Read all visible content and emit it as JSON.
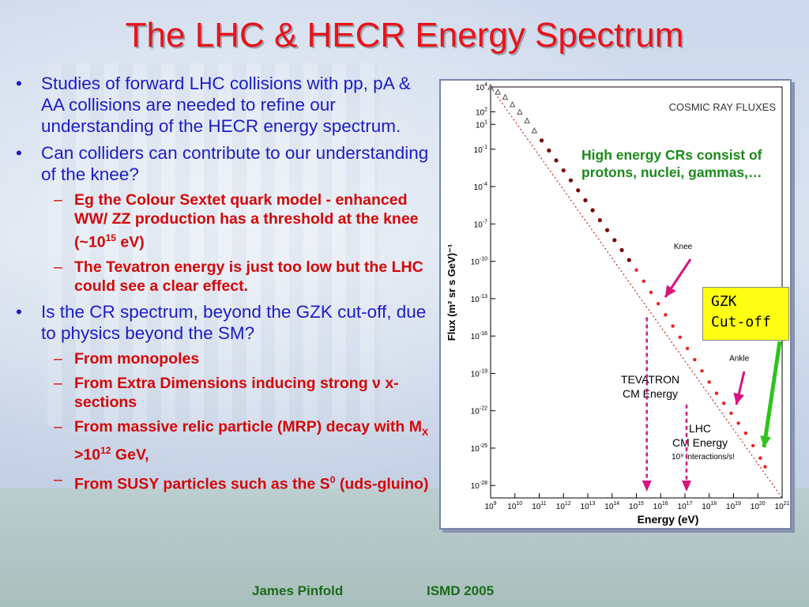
{
  "slide": {
    "title": "The LHC & HECR Energy Spectrum",
    "footer_author": "James Pinfold",
    "footer_conf": "ISMD 2005"
  },
  "bullets": [
    {
      "level": 1,
      "mark": "•",
      "text": "Studies of  forward LHC collisions with pp, pA & AA  collisions are needed  to refine our understanding of the HECR energy spectrum."
    },
    {
      "level": 1,
      "mark": "•",
      "text": "Can colliders can contribute to our understanding of the  knee?"
    },
    {
      "level": 2,
      "mark": "–",
      "text_before": "Eg the Colour Sextet quark model - enhanced WW/ ZZ production has a threshold at the knee (~10",
      "sup": "15",
      "text_after": " eV)"
    },
    {
      "level": 2,
      "mark": "–",
      "text": "The Tevatron energy is just too low but the LHC could see a clear effect."
    },
    {
      "level": 1,
      "mark": "•",
      "text": "Is the CR spectrum,  beyond the GZK cut-off, due to physics beyond the SM?"
    },
    {
      "level": 2,
      "mark": "–",
      "text": "From monopoles"
    },
    {
      "level": 2,
      "mark": "–",
      "text_before": "From Extra Dimensions inducing strong ",
      "greek": "ν",
      "text_after": " x-sections"
    },
    {
      "level": 2,
      "mark": "–",
      "text_before": "From massive relic particle (MRP) decay with M",
      "sub": "X",
      "text_mid": " >10",
      "sup": "12",
      "text_after": " GeV,"
    },
    {
      "level": 2,
      "mark": "–",
      "text_before": "From SUSY particles such as the S",
      "sup": "0",
      "text_after": " (uds-gluino)"
    }
  ],
  "annotations": {
    "note": "High energy CRs consist of protons, nuclei, gammas,…",
    "gzk_line1": "GZK",
    "gzk_line2": "Cut-off"
  },
  "colors": {
    "title": "#e8121a",
    "bullet_l1": "#1c1cc8",
    "bullet_l2": "#d40808",
    "note": "#1a8a1a",
    "gzk_box": "#ffff14",
    "arrow_magenta": "#d8147e",
    "arrow_green": "#2ec41c",
    "footer": "#1a6a1a"
  },
  "chart_data": {
    "type": "scatter",
    "title": "COSMIC RAY FLUXES",
    "xlabel": "Energy (eV)",
    "ylabel": "Flux (m² sr s GeV)⁻¹",
    "x_scale": "log",
    "y_scale": "log",
    "xlim_log10": [
      9,
      21
    ],
    "ylim_log10": [
      -29,
      4
    ],
    "x_tick_exponents": [
      "9",
      "10",
      "11",
      "12",
      "13",
      "14",
      "15",
      "16",
      "17",
      "18",
      "19",
      "20",
      "21"
    ],
    "y_tick_exponents": [
      "4",
      "2",
      "1",
      "-1",
      "-4",
      "-7",
      "-10",
      "-13",
      "-16",
      "-19",
      "-22",
      "-25",
      "-28"
    ],
    "reference_line_log10": [
      [
        9,
        4
      ],
      [
        21,
        -29
      ]
    ],
    "series": [
      {
        "name": "",
        "x_log10": [
          9.0,
          9.3,
          9.6,
          9.9,
          10.2,
          10.5,
          10.8,
          11.1,
          11.4,
          11.7,
          12.0,
          12.3,
          12.6,
          12.9,
          13.2,
          13.5,
          13.8,
          14.1,
          14.4,
          14.7,
          15.0,
          15.3,
          15.6,
          15.9,
          16.2,
          16.5,
          16.8,
          17.1,
          17.4,
          17.7,
          18.0,
          18.3,
          18.6,
          18.9,
          19.2,
          19.5,
          19.8,
          20.1,
          20.3
        ],
        "y_log10": [
          4.0,
          3.6,
          3.2,
          2.6,
          2.0,
          1.3,
          0.5,
          -0.3,
          -1.1,
          -1.9,
          -2.7,
          -3.5,
          -4.3,
          -5.1,
          -5.9,
          -6.7,
          -7.5,
          -8.3,
          -9.1,
          -9.9,
          -10.7,
          -11.6,
          -12.5,
          -13.4,
          -14.3,
          -15.2,
          -16.1,
          -17.0,
          -17.9,
          -18.8,
          -19.7,
          -20.6,
          -21.4,
          -22.2,
          -23.0,
          -23.8,
          -24.8,
          -25.8,
          -26.5
        ]
      }
    ],
    "annotations": [
      {
        "label": "Knee",
        "x_log10": 15.5
      },
      {
        "label": "Ankle",
        "x_log10": 18.5
      },
      {
        "label": "TEVATRON CM Energy",
        "x_log10": 15.3
      },
      {
        "label": "LHC CM Energy",
        "sublabel": "10⁹ interactions/s!",
        "x_log10": 17.0
      }
    ],
    "grid": false
  }
}
